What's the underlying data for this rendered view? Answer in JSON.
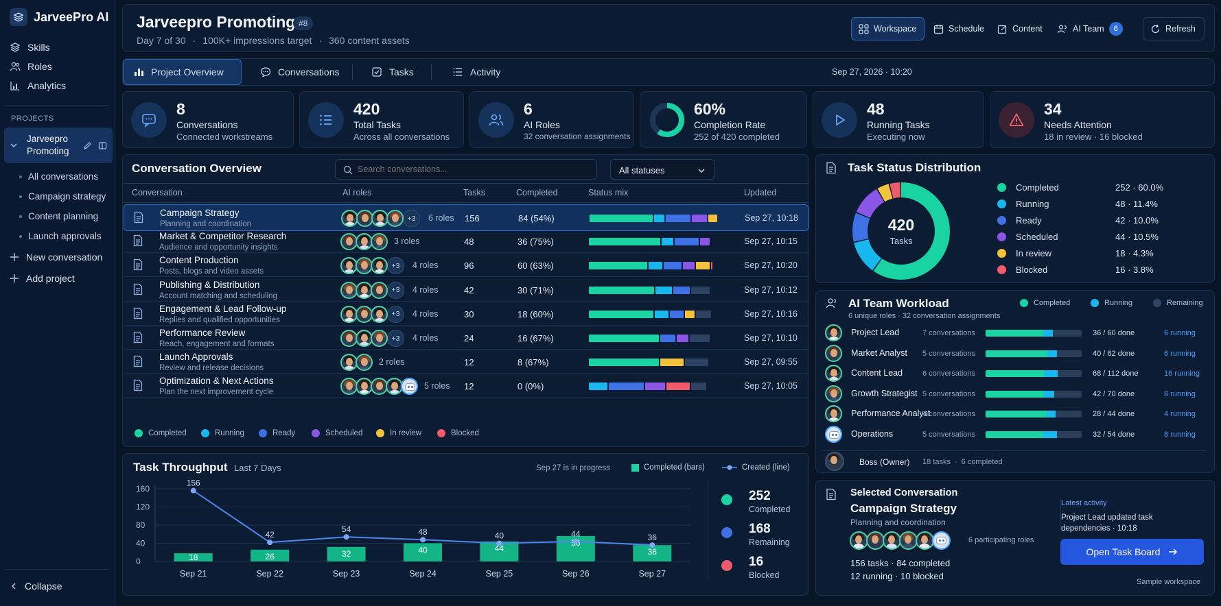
{
  "app": {
    "name": "JarveePro AI"
  },
  "sidebar": {
    "nav": [
      {
        "label": "Skills",
        "icon": "layers-icon"
      },
      {
        "label": "Roles",
        "icon": "users-icon"
      },
      {
        "label": "Analytics",
        "icon": "bar-chart-icon"
      }
    ],
    "projects_header": "PROJECTS",
    "project": {
      "name_line1": "Jarveepro",
      "name_line2": "Promoting"
    },
    "project_items": [
      "All conversations",
      "Campaign strategy",
      "Content planning",
      "Launch approvals"
    ],
    "new_conversation": "New conversation",
    "add_project": "Add project",
    "collapse": "Collapse"
  },
  "header": {
    "title": "Jarveepro Promoting",
    "badge": "#8",
    "meta": [
      "Day 7 of 30",
      "100K+ impressions target",
      "360 content assets"
    ],
    "buttons": {
      "workspace": "Workspace",
      "schedule": "Schedule",
      "content": "Content",
      "ai_team": "AI Team",
      "ai_team_count": "6",
      "refresh": "Refresh"
    }
  },
  "tabs": [
    {
      "label": "Project Overview",
      "active": true
    },
    {
      "label": "Conversations"
    },
    {
      "label": "Tasks"
    },
    {
      "label": "Activity"
    }
  ],
  "datetime": "Sep 27, 2026 · 10:20",
  "stats": [
    {
      "value": "8",
      "label": "Conversations",
      "sub": "Connected workstreams",
      "icon": "chat-icon"
    },
    {
      "value": "420",
      "label": "Total Tasks",
      "sub": "Across all conversations",
      "icon": "list-icon"
    },
    {
      "value": "6",
      "label": "AI Roles",
      "sub": "32 conversation assignments",
      "icon": "users-icon"
    },
    {
      "value": "60%",
      "label": "Completion Rate",
      "sub": "252 of 420 completed",
      "progress": 0.6
    },
    {
      "value": "48",
      "label": "Running Tasks",
      "sub": "Executing now",
      "icon": "play-icon"
    },
    {
      "value": "34",
      "label": "Needs Attention",
      "sub": "18 in review  ·  16 blocked",
      "icon": "warning-icon"
    }
  ],
  "overview": {
    "title": "Conversation Overview",
    "search_placeholder": "Search conversations...",
    "status_filter": "All statuses",
    "columns": [
      "Conversation",
      "AI roles",
      "Tasks",
      "Completed",
      "Status mix",
      "Updated"
    ],
    "rows": [
      {
        "title": "Campaign Strategy",
        "sub": "Planning and coordination",
        "avatars": 4,
        "extra": "+3",
        "roles": "6 roles",
        "tasks": "156",
        "completed": "84  (54%)",
        "mix": [
          54,
          9,
          21,
          13,
          8,
          0
        ],
        "updated": "Sep 27, 10:18",
        "selected": true
      },
      {
        "title": "Market & Competitor Research",
        "sub": "Audience and opportunity insights",
        "avatars": 3,
        "extra": "",
        "roles": "3 roles",
        "tasks": "48",
        "completed": "36  (75%)",
        "mix": [
          61,
          10,
          21,
          8,
          0,
          0
        ],
        "updated": "Sep 27, 10:15"
      },
      {
        "title": "Content Production",
        "sub": "Posts, blogs and video assets",
        "avatars": 3,
        "extra": "+3",
        "roles": "4 roles",
        "tasks": "96",
        "completed": "60  (63%)",
        "mix": [
          50,
          12,
          15,
          10,
          12,
          1
        ],
        "updated": "Sep 27, 10:20"
      },
      {
        "title": "Publishing & Distribution",
        "sub": "Account matching and scheduling",
        "avatars": 3,
        "extra": "+3",
        "roles": "4 roles",
        "tasks": "42",
        "completed": "30  (71%)",
        "mix": [
          56,
          14,
          14,
          0,
          0,
          0
        ],
        "rest": 16,
        "updated": "Sep 27, 10:12"
      },
      {
        "title": "Engagement & Lead Follow-up",
        "sub": "Replies and qualified opportunities",
        "avatars": 3,
        "extra": "+3",
        "roles": "4 roles",
        "tasks": "30",
        "completed": "18  (60%)",
        "mix": [
          55,
          12,
          12,
          0,
          8,
          0
        ],
        "rest": 13,
        "updated": "Sep 27, 10:16"
      },
      {
        "title": "Performance Review",
        "sub": "Reach, engagement and formats",
        "avatars": 3,
        "extra": "+3",
        "roles": "4 roles",
        "tasks": "24",
        "completed": "16  (67%)",
        "mix": [
          60,
          0,
          13,
          10,
          0,
          0
        ],
        "rest": 17,
        "updated": "Sep 27, 10:10"
      },
      {
        "title": "Launch Approvals",
        "sub": "Review and release decisions",
        "avatars": 2,
        "extra": "",
        "roles": "2 roles",
        "tasks": "12",
        "completed": "8  (67%)",
        "mix": [
          60,
          0,
          0,
          0,
          20,
          0
        ],
        "rest": 20,
        "updated": "Sep 27, 09:55"
      },
      {
        "title": "Optimization & Next Actions",
        "sub": "Plan the next improvement cycle",
        "avatars": 4,
        "bot": true,
        "extra": "",
        "roles": "5 roles",
        "tasks": "12",
        "completed": "0  (0%)",
        "mix": [
          0,
          16,
          30,
          17,
          0,
          20
        ],
        "rest": 13,
        "updated": "Sep 27, 10:05"
      }
    ],
    "legend": [
      {
        "label": "Completed",
        "color": "#19d3a2"
      },
      {
        "label": "Running",
        "color": "#18b7ee"
      },
      {
        "label": "Ready",
        "color": "#3e71e6"
      },
      {
        "label": "Scheduled",
        "color": "#8b56e6"
      },
      {
        "label": "In review",
        "color": "#f2c23c"
      },
      {
        "label": "Blocked",
        "color": "#ef5b6a"
      }
    ]
  },
  "distribution": {
    "title": "Task Status Distribution",
    "total": "420",
    "total_label": "Tasks",
    "items": [
      {
        "label": "Completed",
        "value": "252  ·  60.0%",
        "color": "#19d3a2",
        "pct": 60.0
      },
      {
        "label": "Running",
        "value": "48  ·  11.4%",
        "color": "#18b7ee",
        "pct": 11.4
      },
      {
        "label": "Ready",
        "value": "42  ·  10.0%",
        "color": "#3e71e6",
        "pct": 10.0
      },
      {
        "label": "Scheduled",
        "value": "44  ·  10.5%",
        "color": "#8b56e6",
        "pct": 10.5
      },
      {
        "label": "In review",
        "value": "18  ·  4.3%",
        "color": "#f2c23c",
        "pct": 4.3
      },
      {
        "label": "Blocked",
        "value": "16  ·  3.8%",
        "color": "#ef5b6a",
        "pct": 3.8
      }
    ]
  },
  "workload": {
    "title": "AI Team Workload",
    "sub": "6 unique roles · 32 conversation assignments",
    "legend": [
      {
        "label": "Completed",
        "color": "#19d3a2"
      },
      {
        "label": "Running",
        "color": "#18b7ee"
      },
      {
        "label": "Remaining",
        "color": "#2f4565"
      }
    ],
    "rows": [
      {
        "name": "Project Lead",
        "conv": "7 conversations",
        "done": "36 / 60 done",
        "run": "6 running",
        "d": 0.6,
        "r": 0.1
      },
      {
        "name": "Market Analyst",
        "conv": "5 conversations",
        "done": "40 / 62 done",
        "run": "6 running",
        "d": 0.645,
        "r": 0.1
      },
      {
        "name": "Content Lead",
        "conv": "6 conversations",
        "done": "68 / 112 done",
        "run": "16 running",
        "d": 0.607,
        "r": 0.143
      },
      {
        "name": "Growth Strategist",
        "conv": "5 conversations",
        "done": "42 / 70 done",
        "run": "8 running",
        "d": 0.6,
        "r": 0.114
      },
      {
        "name": "Performance Analyst",
        "conv": "4 conversations",
        "done": "28 / 44 done",
        "run": "4 running",
        "d": 0.636,
        "r": 0.09
      },
      {
        "name": "Operations",
        "conv": "5 conversations",
        "done": "32 / 54 done",
        "run": "8 running",
        "d": 0.593,
        "r": 0.148,
        "bot": true
      }
    ],
    "boss": {
      "name": "Boss (Owner)",
      "tasks": "18 tasks",
      "completed": "6 completed"
    }
  },
  "throughput": {
    "title": "Task Throughput",
    "range": "Last 7 Days",
    "note": "Sep 27 is in progress",
    "legend_bars": "Completed (bars)",
    "legend_line": "Created (line)",
    "summary": [
      {
        "value": "252",
        "label": "Completed",
        "color": "#19d3a2"
      },
      {
        "value": "168",
        "label": "Remaining",
        "color": "#3e71e6"
      },
      {
        "value": "16",
        "label": "Blocked",
        "color": "#ef5b6a"
      }
    ]
  },
  "chart_data": {
    "type": "bar",
    "title": "Task Throughput",
    "categories": [
      "Sep 21",
      "Sep 22",
      "Sep 23",
      "Sep 24",
      "Sep 25",
      "Sep 26",
      "Sep 27"
    ],
    "series": [
      {
        "name": "Completed (bars)",
        "type": "bar",
        "values": [
          18,
          26,
          32,
          40,
          44,
          56,
          36
        ]
      },
      {
        "name": "Created (line)",
        "type": "line",
        "values": [
          156,
          42,
          54,
          48,
          40,
          44,
          36
        ]
      }
    ],
    "yticks": [
      0,
      40,
      80,
      120,
      160
    ],
    "ylim": [
      0,
      160
    ]
  },
  "selected": {
    "header": "Selected Conversation",
    "title": "Campaign Strategy",
    "sub": "Planning and coordination",
    "roles": "6 participating roles",
    "tasks": "156 tasks  ·  84 completed",
    "status": "12 running  ·  10 blocked",
    "latest_label": "Latest activity",
    "latest_text1": "Project Lead updated task",
    "latest_text2": "dependencies  ·  10:18",
    "open_button": "Open Task Board",
    "footer": "Sample workspace"
  }
}
